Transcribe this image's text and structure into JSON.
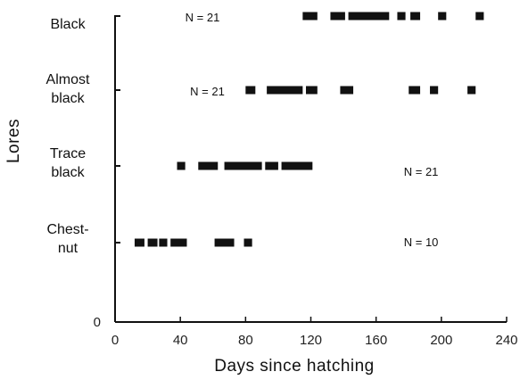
{
  "chart_data": {
    "type": "scatter",
    "xlabel": "Days since hatching",
    "ylabel": "Lores",
    "xlim": [
      0,
      240
    ],
    "x_ticks": [
      "0",
      "40",
      "80",
      "120",
      "160",
      "200",
      "240"
    ],
    "y_origin_label": "0",
    "grid": false,
    "categories": [
      {
        "label_lines": [
          "Black"
        ],
        "n_label": "N = 21",
        "n_label_x": 43,
        "segments": [
          [
            115,
            124
          ],
          [
            132,
            141
          ],
          [
            143,
            168
          ],
          [
            173,
            178
          ],
          [
            181,
            187
          ],
          [
            198,
            203
          ],
          [
            221,
            226
          ]
        ]
      },
      {
        "label_lines": [
          "Almost",
          "black"
        ],
        "n_label": "N = 21",
        "n_label_x": 46,
        "segments": [
          [
            80,
            86
          ],
          [
            93,
            115
          ],
          [
            117,
            124
          ],
          [
            138,
            146
          ],
          [
            180,
            187
          ],
          [
            193,
            198
          ],
          [
            216,
            221
          ]
        ]
      },
      {
        "label_lines": [
          "Trace",
          "black"
        ],
        "n_label": "N = 21",
        "n_label_x": 177,
        "segments": [
          [
            38,
            43
          ],
          [
            51,
            63
          ],
          [
            67,
            90
          ],
          [
            92,
            100
          ],
          [
            102,
            121
          ]
        ]
      },
      {
        "label_lines": [
          "Chest-",
          "nut"
        ],
        "n_label": "N = 10",
        "n_label_x": 177,
        "segments": [
          [
            12,
            18
          ],
          [
            20,
            26
          ],
          [
            27,
            32
          ],
          [
            34,
            44
          ],
          [
            61,
            73
          ],
          [
            79,
            84
          ]
        ]
      }
    ]
  }
}
